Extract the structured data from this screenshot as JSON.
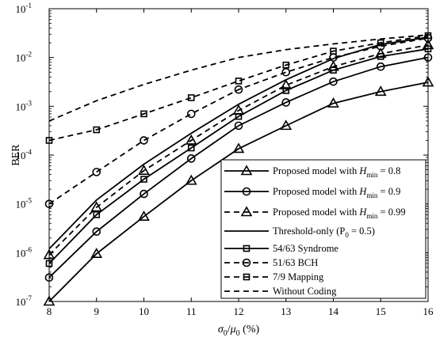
{
  "chart_data": {
    "type": "line",
    "x": [
      8,
      9,
      10,
      11,
      12,
      13,
      14,
      15,
      16
    ],
    "xlim": [
      8,
      16
    ],
    "ylim_log10": [
      -7,
      -1
    ],
    "y_scale": "log",
    "xticks": [
      "8",
      "9",
      "10",
      "11",
      "12",
      "13",
      "14",
      "15",
      "16"
    ],
    "ytick_mantissa": "10",
    "ytick_exponents": [
      "-7",
      "-6",
      "-5",
      "-4",
      "-3",
      "-2",
      "-1"
    ],
    "xlabel": {
      "sigma": "σ",
      "sub0a": "0",
      "slash": "/",
      "mu": "μ",
      "sub0b": "0",
      "unit": " (%)"
    },
    "ylabel": "BER",
    "legend_position": "bottom-right",
    "series": [
      {
        "id": "hmin08",
        "legend": {
          "pre": "Proposed model with ",
          "H": "H",
          "sub": "min",
          "post": " = 0.8"
        },
        "style": "solid",
        "marker": "triangle-up",
        "values": [
          1e-07,
          9.5e-07,
          5.5e-06,
          3e-05,
          0.000135,
          0.0004,
          0.00115,
          0.002,
          0.0031
        ]
      },
      {
        "id": "hmin09",
        "legend": {
          "pre": "Proposed model with ",
          "H": "H",
          "sub": "min",
          "post": " = 0.9"
        },
        "style": "solid",
        "marker": "circle",
        "values": [
          3.1e-07,
          2.7e-06,
          1.6e-05,
          8.5e-05,
          0.0004,
          0.0012,
          0.0032,
          0.0065,
          0.01
        ]
      },
      {
        "id": "hmin099",
        "legend": {
          "pre": "Proposed model with ",
          "H": "H",
          "sub": "min",
          "post": " = 0.99"
        },
        "style": "dashed",
        "marker": "triangle-up",
        "values": [
          9e-07,
          8.5e-06,
          4.8e-05,
          0.0002,
          0.00082,
          0.0027,
          0.0065,
          0.012,
          0.018
        ]
      },
      {
        "id": "threshold",
        "legend": {
          "pre": "Threshold-only (P",
          "sub": "0",
          "post": " = 0.5)"
        },
        "style": "solid",
        "marker": "none",
        "values": [
          1.2e-06,
          1.2e-05,
          6.5e-05,
          0.00028,
          0.0011,
          0.0035,
          0.0095,
          0.0185,
          0.026
        ]
      },
      {
        "id": "syndrome",
        "legend": {
          "text": "54/63 Syndrome"
        },
        "style": "solid",
        "marker": "square",
        "values": [
          6e-07,
          6e-06,
          3.2e-05,
          0.00014,
          0.00062,
          0.0021,
          0.0055,
          0.0105,
          0.015
        ]
      },
      {
        "id": "bch",
        "legend": {
          "text": "51/63 BCH"
        },
        "style": "dashed",
        "marker": "circle",
        "values": [
          1e-05,
          4.5e-05,
          0.0002,
          0.0007,
          0.0022,
          0.005,
          0.01,
          0.017,
          0.025
        ]
      },
      {
        "id": "mapping",
        "legend": {
          "text": "7/9 Mapping"
        },
        "style": "dashed",
        "marker": "square",
        "values": [
          0.0002,
          0.00033,
          0.0007,
          0.0015,
          0.0033,
          0.007,
          0.0135,
          0.02,
          0.028
        ]
      },
      {
        "id": "nocoding",
        "legend": {
          "text": "Without Coding"
        },
        "style": "dashed",
        "marker": "none",
        "values": [
          0.0005,
          0.0013,
          0.0028,
          0.0055,
          0.01,
          0.0145,
          0.019,
          0.024,
          0.029
        ]
      }
    ]
  }
}
